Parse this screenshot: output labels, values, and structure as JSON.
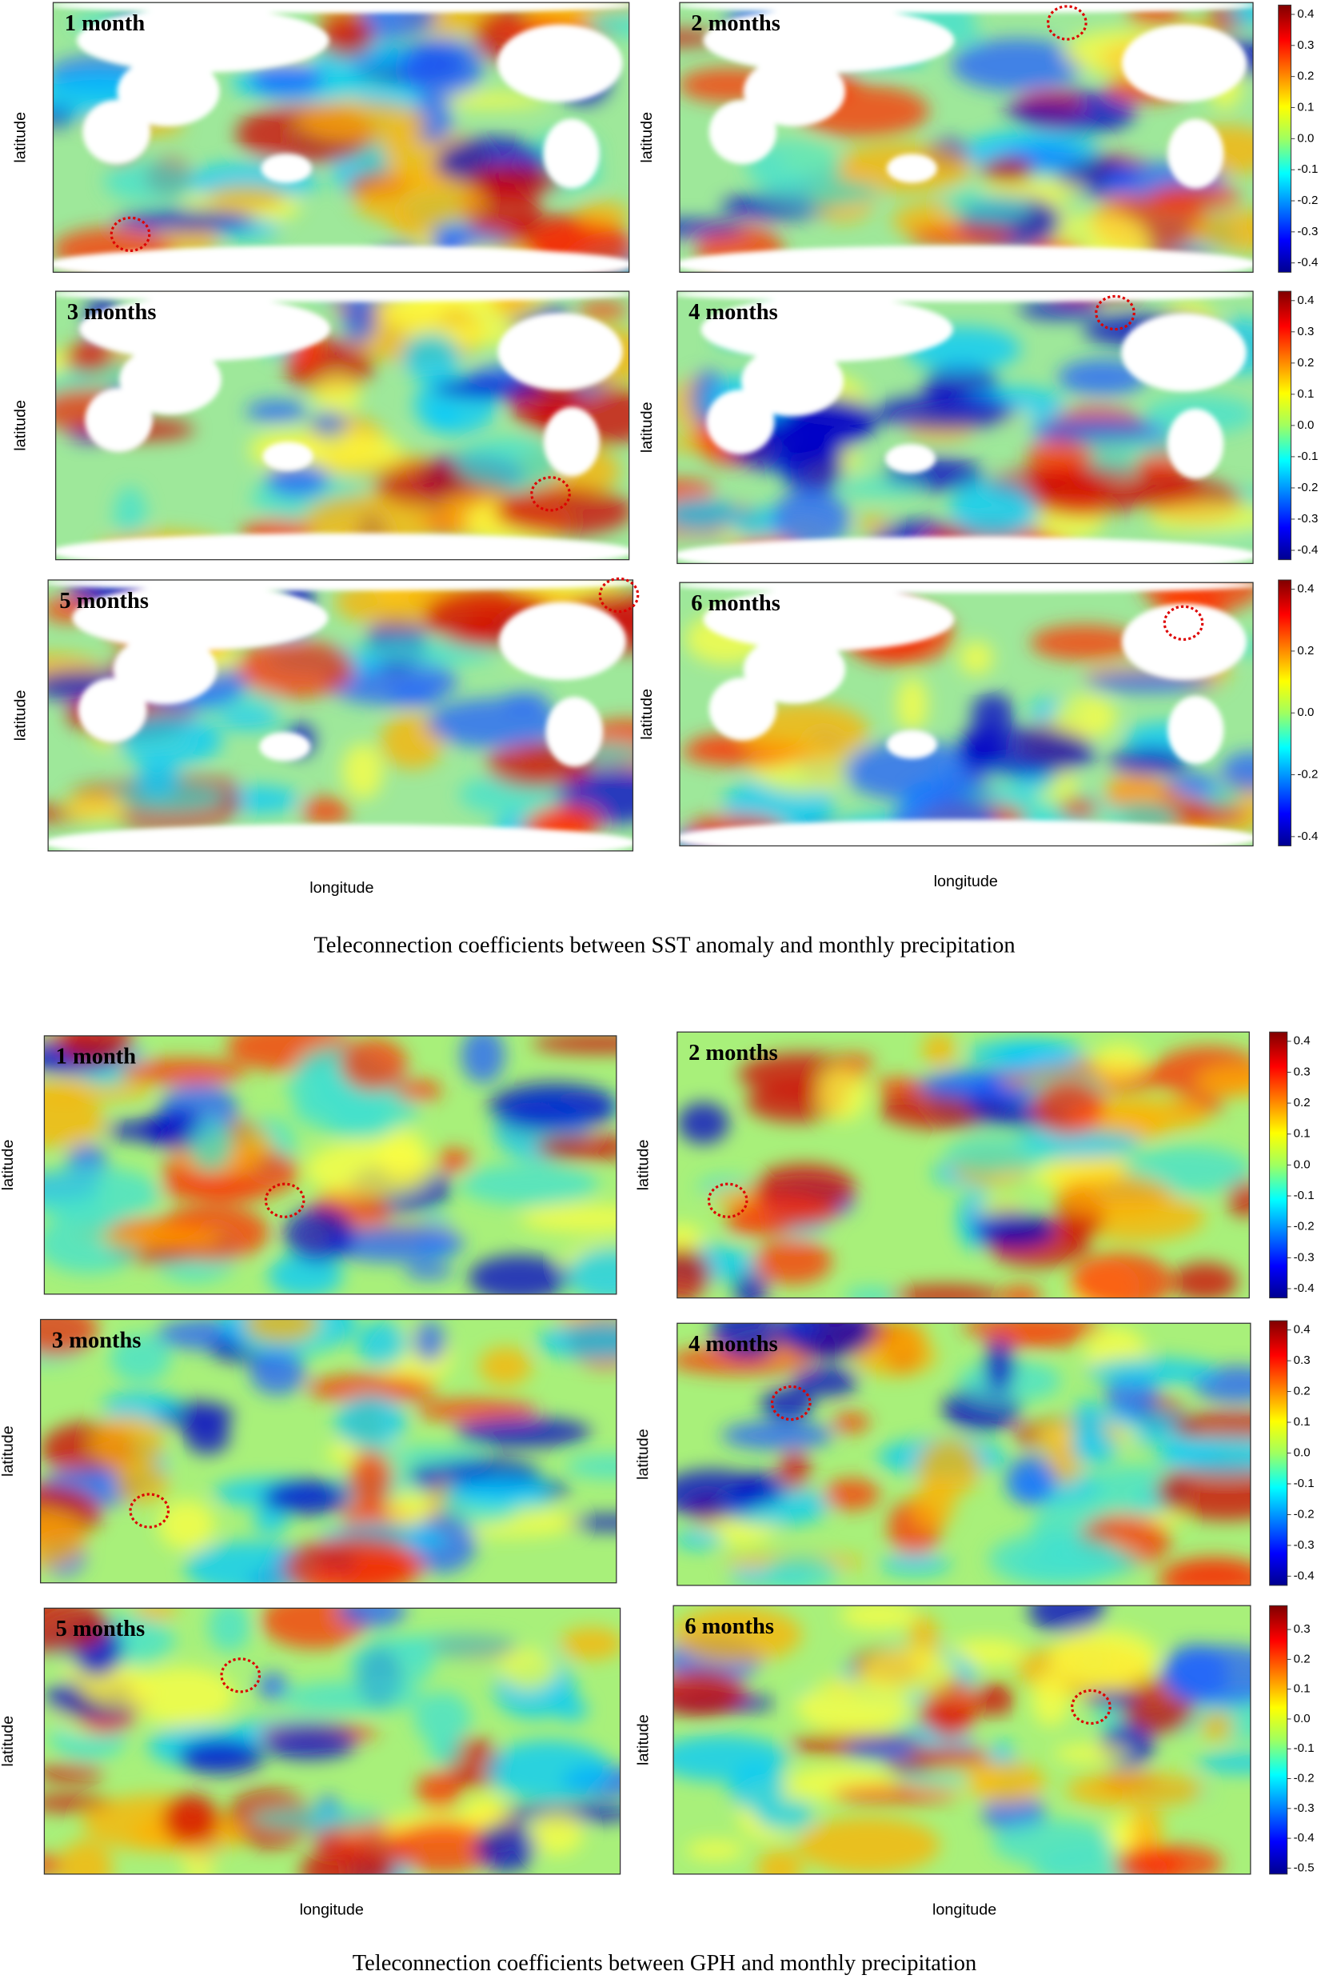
{
  "figures": [
    {
      "caption": "Teleconnection coefficients between SST anomaly and monthly precipitation",
      "x_label": "longitude",
      "y_label": "latitude",
      "panels": [
        {
          "label": "1 month"
        },
        {
          "label": "2 months",
          "colorbar": {
            "range": [
              -0.43,
              0.43
            ],
            "ticks": [
              0.4,
              0.3,
              0.2,
              0.1,
              {
                "value": 0,
                "label": "0.0"
              },
              -0.1,
              -0.2,
              -0.3,
              -0.4
            ]
          }
        },
        {
          "label": "3 months"
        },
        {
          "label": "4 months",
          "colorbar": {
            "range": [
              -0.43,
              0.43
            ],
            "ticks": [
              0.4,
              0.3,
              0.2,
              0.1,
              {
                "value": 0,
                "label": "0.0"
              },
              -0.1,
              -0.2,
              -0.3,
              -0.4
            ]
          }
        },
        {
          "label": "5 months"
        },
        {
          "label": "6 months",
          "colorbar": {
            "range": [
              -0.43,
              0.43
            ],
            "ticks": [
              0.4,
              0.2,
              {
                "value": 0,
                "label": "0.0"
              },
              -0.2,
              -0.4
            ]
          }
        }
      ]
    },
    {
      "caption": "Teleconnection coefficients between GPH and monthly precipitation",
      "x_label": "longitude",
      "y_label": "latitude",
      "panels": [
        {
          "label": "1 month"
        },
        {
          "label": "2 months",
          "colorbar": {
            "range": [
              -0.43,
              0.43
            ],
            "ticks": [
              0.4,
              0.3,
              0.2,
              0.1,
              {
                "value": 0,
                "label": "0.0"
              },
              -0.1,
              -0.2,
              -0.3,
              -0.4
            ]
          }
        },
        {
          "label": "3 months"
        },
        {
          "label": "4 months",
          "colorbar": {
            "range": [
              -0.43,
              0.43
            ],
            "ticks": [
              0.4,
              0.3,
              0.2,
              0.1,
              {
                "value": 0,
                "label": "0.0"
              },
              -0.1,
              -0.2,
              -0.3,
              -0.4
            ]
          }
        },
        {
          "label": "5 months"
        },
        {
          "label": "6 months",
          "colorbar": {
            "range": [
              -0.52,
              0.38
            ],
            "ticks": [
              0.3,
              0.2,
              0.1,
              {
                "value": 0,
                "label": "0.0"
              },
              -0.1,
              -0.2,
              -0.3,
              -0.4,
              -0.5
            ]
          }
        }
      ]
    }
  ]
}
